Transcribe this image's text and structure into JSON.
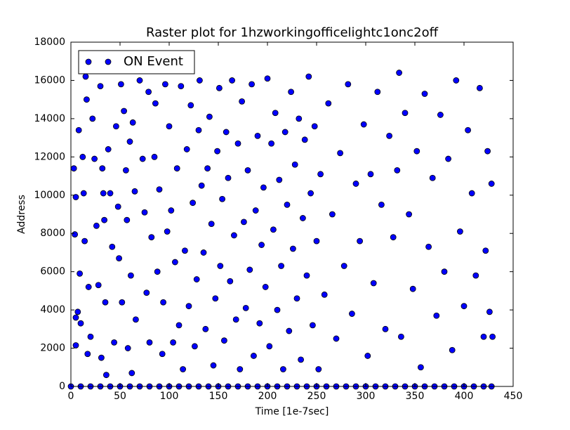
{
  "chart_data": {
    "type": "scatter",
    "title": "Raster plot for 1hzworkingofficelightc1onc2off",
    "x_label": "Time [1e-7sec]",
    "y_label": "Address",
    "xlim": [
      0,
      450
    ],
    "ylim": [
      0,
      18000
    ],
    "xticks": [
      0,
      50,
      100,
      150,
      200,
      250,
      300,
      350,
      400,
      450
    ],
    "yticks": [
      0,
      2000,
      4000,
      6000,
      8000,
      10000,
      12000,
      14000,
      16000,
      18000
    ],
    "legend": "upper left",
    "x": [
      0,
      10,
      20,
      30,
      40,
      50,
      60,
      70,
      80,
      90,
      100,
      110,
      120,
      130,
      140,
      150,
      160,
      170,
      180,
      190,
      200,
      210,
      220,
      230,
      240,
      250,
      260,
      270,
      280,
      290,
      300,
      310,
      320,
      330,
      340,
      350,
      360,
      370,
      380,
      390,
      400,
      410,
      420,
      428,
      3,
      5,
      4,
      5,
      5,
      7,
      8,
      9,
      10,
      12,
      13,
      14,
      15,
      16,
      17,
      18,
      20,
      22,
      24,
      26,
      28,
      30,
      31,
      32,
      33,
      34,
      35,
      36,
      38,
      40,
      42,
      44,
      46,
      48,
      49,
      51,
      52,
      54,
      56,
      57,
      58,
      60,
      61,
      62,
      63,
      65,
      66,
      70,
      73,
      75,
      77,
      79,
      80,
      82,
      85,
      86,
      88,
      90,
      93,
      94,
      96,
      98,
      100,
      102,
      104,
      106,
      108,
      110,
      112,
      114,
      116,
      118,
      120,
      122,
      124,
      126,
      128,
      130,
      131,
      133,
      135,
      137,
      139,
      141,
      143,
      145,
      147,
      149,
      151,
      152,
      154,
      156,
      158,
      160,
      162,
      164,
      166,
      168,
      170,
      172,
      174,
      176,
      178,
      180,
      182,
      184,
      186,
      188,
      190,
      192,
      194,
      196,
      198,
      200,
      202,
      204,
      206,
      208,
      210,
      212,
      214,
      216,
      218,
      220,
      222,
      224,
      226,
      228,
      230,
      232,
      234,
      236,
      238,
      240,
      242,
      244,
      246,
      248,
      250,
      252,
      254,
      258,
      262,
      266,
      270,
      274,
      278,
      282,
      286,
      290,
      294,
      298,
      302,
      305,
      308,
      312,
      316,
      320,
      324,
      328,
      332,
      334,
      336,
      340,
      344,
      348,
      352,
      356,
      360,
      364,
      368,
      372,
      376,
      380,
      384,
      388,
      392,
      396,
      400,
      404,
      408,
      412,
      416,
      420,
      422,
      424,
      426,
      428,
      429
    ],
    "series": [
      {
        "name": "ON Event",
        "color": "#0000ff",
        "values": [
          0,
          0,
          0,
          0,
          0,
          0,
          0,
          0,
          0,
          0,
          0,
          0,
          0,
          0,
          0,
          0,
          0,
          0,
          0,
          0,
          0,
          0,
          0,
          0,
          0,
          0,
          0,
          0,
          0,
          0,
          0,
          0,
          0,
          0,
          0,
          0,
          0,
          0,
          0,
          0,
          0,
          0,
          0,
          0,
          11400,
          9900,
          7950,
          3600,
          2150,
          3900,
          13400,
          5900,
          3300,
          12000,
          10100,
          7600,
          16200,
          15000,
          1700,
          5200,
          2600,
          14000,
          11900,
          8400,
          5300,
          15700,
          1500,
          11400,
          10100,
          8700,
          4400,
          600,
          12400,
          10100,
          7300,
          2300,
          13600,
          9400,
          6700,
          15800,
          4400,
          14400,
          11300,
          8700,
          2000,
          12800,
          5800,
          700,
          13800,
          10200,
          3500,
          16000,
          11900,
          9100,
          4900,
          15400,
          2300,
          7800,
          12000,
          14800,
          6000,
          10300,
          1700,
          4400,
          15800,
          8100,
          13600,
          9200,
          2300,
          6500,
          11400,
          3200,
          15700,
          900,
          7100,
          12400,
          4200,
          14700,
          9600,
          2100,
          5600,
          13400,
          16000,
          10500,
          7000,
          3000,
          11400,
          14100,
          8500,
          1100,
          4600,
          12300,
          15600,
          6300,
          9800,
          2400,
          13300,
          10900,
          5500,
          16000,
          7900,
          3500,
          12700,
          900,
          14900,
          8600,
          4100,
          11300,
          6100,
          15800,
          1600,
          9200,
          13100,
          3300,
          7400,
          10400,
          5200,
          16100,
          2100,
          12700,
          8200,
          14300,
          4000,
          10800,
          6300,
          900,
          13300,
          9500,
          2900,
          15400,
          7200,
          11600,
          4600,
          14000,
          1400,
          8800,
          12900,
          5800,
          16200,
          10100,
          3200,
          13600,
          7600,
          900,
          11100,
          4800,
          14800,
          9000,
          2500,
          12200,
          6300,
          15800,
          3800,
          10600,
          7600,
          13700,
          1600,
          11100,
          5400,
          15400,
          9500,
          3000,
          13100,
          7800,
          11300,
          16400,
          2600,
          14300,
          9000,
          5100,
          12300,
          1000,
          15300,
          7300,
          10900,
          3700,
          14200,
          6000,
          11900,
          1900,
          16000,
          8100,
          4200,
          13400,
          10100,
          5800,
          15600,
          2600,
          7100,
          12300,
          3900,
          10600,
          2600
        ]
      }
    ]
  }
}
